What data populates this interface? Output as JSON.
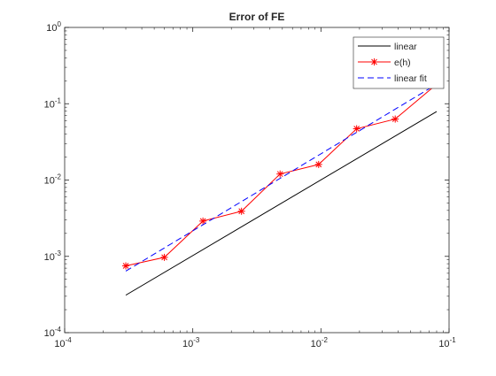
{
  "chart_data": {
    "type": "line",
    "title": "Error of FE",
    "xlabel": "",
    "ylabel": "",
    "xscale": "log",
    "yscale": "log",
    "xlim": [
      0.0001,
      0.1
    ],
    "ylim": [
      0.0001,
      1
    ],
    "grid": false,
    "legend_position": "top-right",
    "x_ticks": [
      {
        "base": "10",
        "exp": "-4"
      },
      {
        "base": "10",
        "exp": "-3"
      },
      {
        "base": "10",
        "exp": "-2"
      },
      {
        "base": "10",
        "exp": "-1"
      }
    ],
    "y_ticks": [
      {
        "base": "10",
        "exp": "-4"
      },
      {
        "base": "10",
        "exp": "-3"
      },
      {
        "base": "10",
        "exp": "-2"
      },
      {
        "base": "10",
        "exp": "-1"
      },
      {
        "base": "10",
        "exp": "0"
      }
    ],
    "series": [
      {
        "name": "linear",
        "color": "#000000",
        "style": "solid",
        "marker": "none",
        "x": [
          0.0003,
          0.08
        ],
        "y": [
          0.00031,
          0.079
        ]
      },
      {
        "name": "e(h)",
        "color": "#ff0000",
        "style": "solid",
        "marker": "asterisk",
        "x": [
          0.0003,
          0.0006,
          0.0012,
          0.0024,
          0.0048,
          0.0096,
          0.019,
          0.038,
          0.08
        ],
        "y": [
          0.00075,
          0.00097,
          0.0029,
          0.0039,
          0.012,
          0.016,
          0.047,
          0.063,
          0.18
        ]
      },
      {
        "name": "linear fit",
        "color": "#0000ff",
        "style": "dashed",
        "marker": "none",
        "x": [
          0.0003,
          0.08
        ],
        "y": [
          0.00064,
          0.18
        ]
      }
    ]
  }
}
